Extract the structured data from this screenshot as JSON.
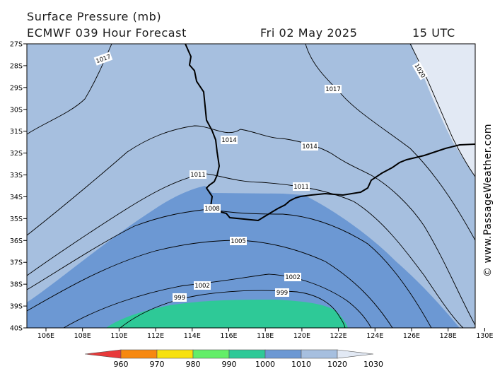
{
  "header": {
    "title": "Surface Pressure (mb)",
    "model": "ECMWF 039 Hour Forecast",
    "date": "Fri 02 May 2025",
    "time": "15 UTC"
  },
  "map": {
    "lat_labels": [
      "27S",
      "28S",
      "29S",
      "30S",
      "31S",
      "32S",
      "33S",
      "34S",
      "35S",
      "36S",
      "37S",
      "38S",
      "39S",
      "40S"
    ],
    "lon_labels": [
      "106E",
      "108E",
      "110E",
      "112E",
      "114E",
      "116E",
      "118E",
      "120E",
      "122E",
      "124E",
      "126E",
      "128E",
      "130E"
    ],
    "isobar_labels": [
      {
        "text": "1017",
        "angle": -20
      },
      {
        "text": "1017",
        "angle": 0
      },
      {
        "text": "1020",
        "angle": 60
      },
      {
        "text": "1014",
        "angle": 0
      },
      {
        "text": "1014",
        "angle": 0
      },
      {
        "text": "1011",
        "angle": 0
      },
      {
        "text": "1011",
        "angle": 0
      },
      {
        "text": "1008",
        "angle": 0
      },
      {
        "text": "1005",
        "angle": 0
      },
      {
        "text": "1002",
        "angle": 0
      },
      {
        "text": "1002",
        "angle": 0
      },
      {
        "text": "999",
        "angle": 0
      },
      {
        "text": "999",
        "angle": 0
      }
    ],
    "fill_colors": {
      "band_1020_1030": "#e2e9f4",
      "band_1010_1020": "#a6bfdf",
      "band_1000_1010": "#6c98d3",
      "band_990_1000": "#2ec997",
      "band_980_990": "#64ec64"
    }
  },
  "colorbar": {
    "labels": [
      "960",
      "970",
      "980",
      "990",
      "1000",
      "1010",
      "1020",
      "1030"
    ],
    "colors": [
      "#e8393a",
      "#f7880f",
      "#f7e10d",
      "#63ee68",
      "#2ec997",
      "#6c98d3",
      "#a6bfdf",
      "#e2e9f4"
    ]
  },
  "credit": "© www.PassageWeather.com"
}
